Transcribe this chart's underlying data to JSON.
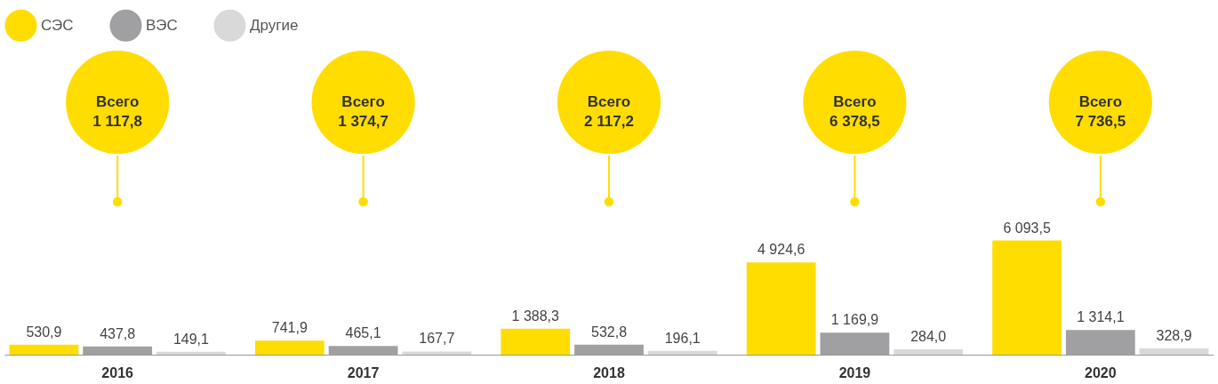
{
  "chart_data": {
    "type": "bar",
    "categories": [
      "2016",
      "2017",
      "2018",
      "2019",
      "2020"
    ],
    "series": [
      {
        "name": "СЭС",
        "color": "#ffdd00",
        "values": [
          530.9,
          741.9,
          1388.3,
          4924.6,
          6093.5
        ],
        "value_labels": [
          "530,9",
          "741,9",
          "1 388,3",
          "4 924,6",
          "6 093,5"
        ]
      },
      {
        "name": "ВЭС",
        "color": "#a0a0a3",
        "values": [
          437.8,
          465.1,
          532.8,
          1169.9,
          1314.1
        ],
        "value_labels": [
          "437,8",
          "465,1",
          "532,8",
          "1 169,9",
          "1 314,1"
        ]
      },
      {
        "name": "Другие",
        "color": "#d9d9d9",
        "values": [
          149.1,
          167.7,
          196.1,
          284.0,
          328.9
        ],
        "value_labels": [
          "149,1",
          "167,7",
          "196,1",
          "284,0",
          "328,9"
        ]
      }
    ],
    "annotations": [
      "Всего\n1 117,8",
      "Всего\n1 374,7",
      "Всего\n2 117,2",
      "Всего\n6 378,5",
      "Всего\n7 736,5"
    ],
    "legend": "top",
    "grid": false,
    "tick_labels": "x"
  }
}
